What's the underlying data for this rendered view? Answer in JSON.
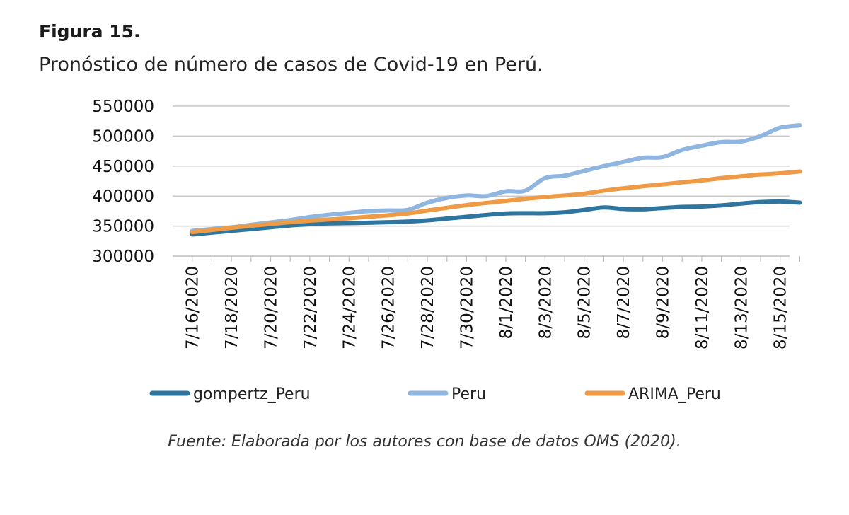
{
  "figure": {
    "label": "Figura 15.",
    "title": "Pronóstico de número de casos de Covid-19 en Perú.",
    "source": "Fuente: Elaborada por los autores con base de datos OMS (2020)."
  },
  "chart_data": {
    "type": "line",
    "ylim": [
      300000,
      550000
    ],
    "yticks": [
      300000,
      350000,
      400000,
      450000,
      500000,
      550000
    ],
    "xtick_labels": [
      "7/16/2020",
      "7/18/2020",
      "7/20/2020",
      "7/22/2020",
      "7/24/2020",
      "7/26/2020",
      "7/28/2020",
      "7/30/2020",
      "8/1/2020",
      "8/3/2020",
      "8/5/2020",
      "8/7/2020",
      "8/9/2020",
      "8/11/2020",
      "8/13/2020",
      "8/15/2020"
    ],
    "x": [
      "7/16/2020",
      "7/17/2020",
      "7/18/2020",
      "7/19/2020",
      "7/20/2020",
      "7/21/2020",
      "7/22/2020",
      "7/23/2020",
      "7/24/2020",
      "7/25/2020",
      "7/26/2020",
      "7/27/2020",
      "7/28/2020",
      "7/29/2020",
      "7/30/2020",
      "7/31/2020",
      "8/1/2020",
      "8/2/2020",
      "8/3/2020",
      "8/4/2020",
      "8/5/2020",
      "8/6/2020",
      "8/7/2020",
      "8/8/2020",
      "8/9/2020",
      "8/10/2020",
      "8/11/2020",
      "8/12/2020",
      "8/13/2020",
      "8/14/2020",
      "8/15/2020",
      "8/16/2020"
    ],
    "grid": true,
    "legend_position": "bottom",
    "series": [
      {
        "name": "gompertz_Peru",
        "color": "#2e75a0",
        "values": [
          336000,
          339000,
          342000,
          345000,
          348000,
          351000,
          353000,
          354500,
          355000,
          355500,
          356500,
          357500,
          359500,
          362500,
          365500,
          368500,
          371000,
          371500,
          371500,
          373000,
          377000,
          381000,
          378500,
          378000,
          380000,
          382000,
          382500,
          384500,
          387500,
          390000,
          391000,
          389000
        ]
      },
      {
        "name": "Peru",
        "color": "#8fb6e0",
        "values": [
          342000,
          345000,
          348000,
          352000,
          356000,
          360000,
          365000,
          369000,
          372000,
          375000,
          376000,
          377000,
          389000,
          397000,
          401000,
          400000,
          408000,
          409000,
          430000,
          434000,
          442000,
          450000,
          457000,
          464000,
          465000,
          477000,
          484000,
          490000,
          491000,
          500000,
          514000,
          518000
        ]
      },
      {
        "name": "ARIMA_Peru",
        "color": "#ef9a45",
        "values": [
          340000,
          343500,
          347000,
          350500,
          353500,
          356500,
          359000,
          361000,
          363000,
          365500,
          368000,
          371000,
          376000,
          380500,
          385000,
          388500,
          392000,
          395500,
          398500,
          401000,
          404000,
          409000,
          413000,
          416500,
          419500,
          423000,
          426000,
          430000,
          433000,
          436000,
          438000,
          441000
        ]
      }
    ]
  }
}
